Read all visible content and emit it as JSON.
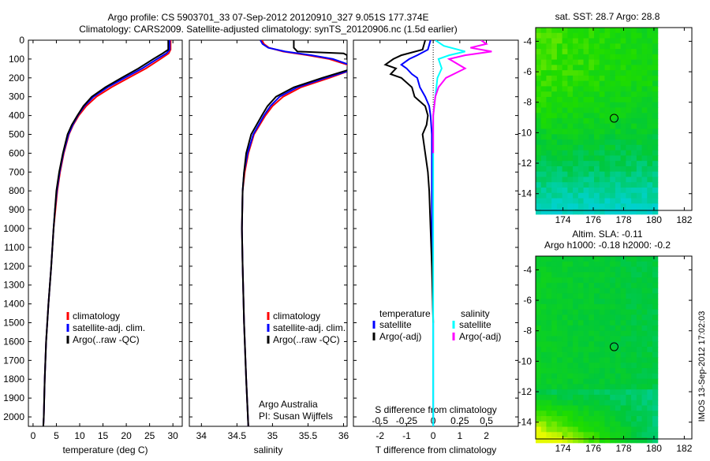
{
  "title": {
    "line1": "Argo profile: CS 5903701_33 07-Sep-2012 20120910_327 9.051S 177.374E",
    "line2": "Climatology: CARS2009. Satellite-adjusted climatology: synTS_20120906.nc (1.5d earlier)"
  },
  "colors": {
    "climatology": "#ff0000",
    "satellite": "#0000ff",
    "argo": "#000000",
    "sal_satellite": "#00ffff",
    "sal_argo": "#ff00ff"
  },
  "chart_data": [
    {
      "type": "line",
      "name": "temperature",
      "xlabel": "temperature (deg C)",
      "ylabel": "",
      "xlim": [
        -1,
        32
      ],
      "ylim": [
        2050,
        0
      ],
      "xticks": [
        0,
        5,
        10,
        15,
        20,
        25,
        30
      ],
      "yticks": [
        0,
        100,
        200,
        300,
        400,
        500,
        600,
        700,
        800,
        900,
        1000,
        1100,
        1200,
        1300,
        1400,
        1500,
        1600,
        1700,
        1800,
        1900,
        2000
      ],
      "legend": [
        "climatology",
        "satellite-adj. clim.",
        "Argo(..raw -QC)"
      ],
      "series": [
        {
          "name": "climatology",
          "color": "#ff0000",
          "depth": [
            0,
            50,
            70,
            100,
            150,
            200,
            250,
            300,
            350,
            400,
            450,
            500,
            600,
            700,
            800,
            900,
            1000,
            1200,
            1400,
            1600,
            1800,
            2000,
            2050
          ],
          "values": [
            29.5,
            29.5,
            29.1,
            27.3,
            24.2,
            20.5,
            16.8,
            13.6,
            11.4,
            9.8,
            8.6,
            7.7,
            6.6,
            5.8,
            5.2,
            4.8,
            4.4,
            3.9,
            3.3,
            2.8,
            2.5,
            2.3,
            2.2
          ]
        },
        {
          "name": "satellite-adj. clim.",
          "color": "#0000ff",
          "depth": [
            0,
            50,
            70,
            100,
            150,
            200,
            250,
            300,
            350,
            400,
            450,
            500,
            600,
            700,
            800,
            900,
            1000,
            1200,
            1400,
            1600,
            1800,
            2000,
            2050
          ],
          "values": [
            29.3,
            29.3,
            28.6,
            26.6,
            23.4,
            19.7,
            16.0,
            13.0,
            11.0,
            9.6,
            8.5,
            7.6,
            6.5,
            5.7,
            5.1,
            4.7,
            4.4,
            3.9,
            3.3,
            2.8,
            2.5,
            2.3,
            2.2
          ]
        },
        {
          "name": "Argo(..raw -QC)",
          "color": "#000000",
          "depth": [
            0,
            50,
            70,
            100,
            150,
            200,
            250,
            300,
            350,
            400,
            450,
            500,
            600,
            700,
            800,
            900,
            1000,
            1200,
            1400,
            1600,
            1800,
            2000,
            2050
          ],
          "values": [
            29.0,
            29.0,
            27.8,
            25.8,
            22.6,
            19.0,
            15.5,
            12.6,
            10.8,
            9.5,
            8.3,
            7.4,
            6.4,
            5.6,
            5.0,
            4.7,
            4.4,
            3.9,
            3.3,
            2.8,
            2.5,
            2.3,
            2.2
          ]
        }
      ]
    },
    {
      "type": "line",
      "name": "salinity",
      "xlabel": "salinity",
      "xlim": [
        33.83,
        36.05
      ],
      "ylim": [
        2050,
        0
      ],
      "xticks": [
        34,
        34.5,
        35,
        35.5,
        36
      ],
      "legend": [
        "climatology",
        "satellite-adj. clim.",
        "Argo(..raw -QC)"
      ],
      "annotation": [
        "Argo Australia",
        "PI: Susan Wijffels"
      ],
      "series": [
        {
          "name": "climatology",
          "color": "#ff0000",
          "depth": [
            0,
            20,
            40,
            60,
            80,
            100,
            130,
            160,
            200,
            250,
            300,
            350,
            400,
            500,
            600,
            700,
            800,
            1000,
            1200,
            1500,
            1800,
            2050
          ],
          "values": [
            34.85,
            34.88,
            34.95,
            35.15,
            35.5,
            35.8,
            36.05,
            36.1,
            35.8,
            35.4,
            35.15,
            35.0,
            34.9,
            34.74,
            34.66,
            34.61,
            34.58,
            34.57,
            34.58,
            34.6,
            34.63,
            34.66
          ]
        },
        {
          "name": "satellite-adj. clim.",
          "color": "#0000ff",
          "depth": [
            0,
            20,
            40,
            60,
            80,
            100,
            130,
            160,
            200,
            250,
            300,
            350,
            400,
            500,
            600,
            700,
            800,
            1000,
            1200,
            1500,
            1800,
            2050
          ],
          "values": [
            34.83,
            34.86,
            34.94,
            35.18,
            35.55,
            35.85,
            36.08,
            36.1,
            35.75,
            35.35,
            35.1,
            34.97,
            34.88,
            34.73,
            34.65,
            34.6,
            34.58,
            34.57,
            34.58,
            34.6,
            34.63,
            34.66
          ]
        },
        {
          "name": "Argo(..raw -QC)",
          "color": "#000000",
          "depth": [
            0,
            20,
            40,
            60,
            70,
            80,
            100,
            130,
            160,
            200,
            250,
            300,
            350,
            400,
            500,
            600,
            700,
            800,
            1000,
            1200,
            1500,
            1800,
            2050
          ],
          "values": [
            35.3,
            35.3,
            35.3,
            35.35,
            36.0,
            36.05,
            36.05,
            36.08,
            36.05,
            35.7,
            35.3,
            35.05,
            34.93,
            34.85,
            34.7,
            34.63,
            34.6,
            34.58,
            34.57,
            34.58,
            34.6,
            34.63,
            34.66
          ]
        }
      ]
    },
    {
      "type": "line",
      "name": "difference",
      "xlabel": "T difference from climatology",
      "xlabel2": "S difference from climatology",
      "xlim": [
        -3,
        3.2
      ],
      "xticks": [
        -2,
        -1,
        0,
        1,
        2
      ],
      "xticks_s": [
        "-0.5",
        "-0.25",
        "0",
        "0.25",
        "0.5"
      ],
      "legend": {
        "temperature": "temperature",
        "salinity": "salinity",
        "items": [
          "satellite",
          "Argo(-adj)",
          "satellite",
          "Argo(-adj)"
        ]
      },
      "series": [
        {
          "name": "T satellite",
          "color": "#0000ff",
          "depth": [
            0,
            50,
            80,
            100,
            130,
            150,
            180,
            200,
            250,
            300,
            350,
            400,
            500,
            700,
            1000,
            1500,
            2050
          ],
          "values": [
            -0.1,
            -0.2,
            -0.6,
            -0.9,
            -1.2,
            -1.0,
            -0.8,
            -0.6,
            -0.5,
            -0.3,
            -0.15,
            -0.1,
            -0.05,
            -0.05,
            -0.05,
            0,
            0
          ]
        },
        {
          "name": "T Argo",
          "color": "#000000",
          "depth": [
            0,
            50,
            80,
            100,
            130,
            150,
            180,
            200,
            250,
            300,
            350,
            400,
            450,
            500,
            600,
            700,
            800,
            1000,
            1200,
            1500
          ],
          "values": [
            -0.3,
            -0.4,
            -1.2,
            -1.5,
            -1.8,
            -1.4,
            -1.6,
            -1.2,
            -0.8,
            -0.7,
            -0.3,
            -0.2,
            -0.25,
            -0.4,
            -0.3,
            -0.2,
            -0.15,
            -0.1,
            -0.05,
            0
          ]
        },
        {
          "name": "S satellite",
          "color": "#00ffff",
          "depth": [
            0,
            30,
            60,
            80,
            100,
            150,
            200,
            250,
            300,
            400,
            600,
            1000,
            2050
          ],
          "values": [
            0.02,
            0.1,
            0.3,
            0.15,
            0.05,
            0.08,
            0.04,
            0.03,
            0.02,
            0,
            0,
            0,
            0
          ]
        },
        {
          "name": "S Argo",
          "color": "#ff00ff",
          "depth": [
            0,
            20,
            40,
            60,
            80,
            100,
            150,
            200,
            250,
            300,
            400,
            600
          ],
          "values": [
            0.45,
            0.5,
            0.35,
            0.55,
            0.3,
            0.15,
            0.3,
            0.12,
            0.05,
            0.02,
            0,
            0
          ]
        }
      ]
    },
    {
      "type": "heatmap",
      "name": "sst-map",
      "title": "sat. SST: 28.7 Argo: 28.8",
      "xlim": [
        172.2,
        182.5
      ],
      "ylim": [
        -15.1,
        -3.1
      ],
      "xticks": [
        174,
        176,
        178,
        180,
        182
      ],
      "yticks": [
        -4,
        -6,
        -8,
        -10,
        -12,
        -14
      ],
      "marker": {
        "lon": 177.374,
        "lat": -9.051
      }
    },
    {
      "type": "heatmap",
      "name": "sla-map",
      "title": "Altim. SLA: -0.11",
      "subtitle": "Argo h1000: -0.18 h2000: -0.2",
      "xlim": [
        172.2,
        182.5
      ],
      "ylim": [
        -15.1,
        -3.1
      ],
      "xticks": [
        174,
        176,
        178,
        180,
        182
      ],
      "yticks": [
        -4,
        -6,
        -8,
        -10,
        -12,
        -14
      ],
      "marker": {
        "lon": 177.374,
        "lat": -9.051
      }
    }
  ],
  "stamp": "IMOS 13-Sep-2012 17:02:03"
}
